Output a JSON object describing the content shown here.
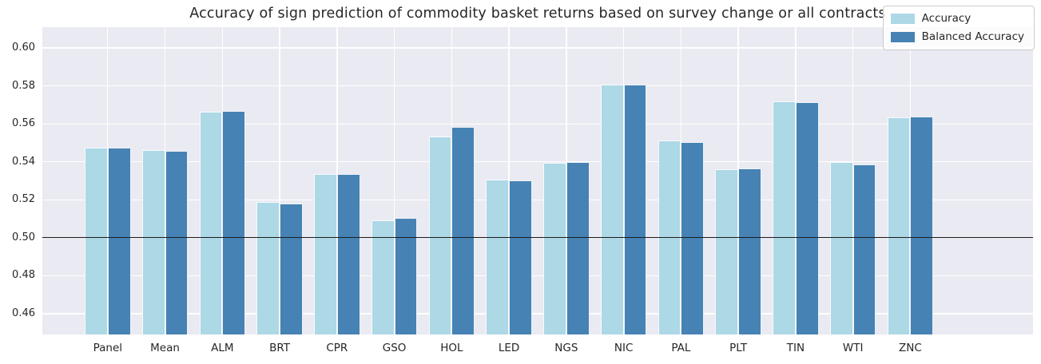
{
  "chart_data": {
    "type": "bar",
    "title": "Accuracy of sign prediction of commodity basket returns based on survey change or all contracts",
    "categories": [
      "Panel",
      "Mean",
      "ALM",
      "BRT",
      "CPR",
      "GSO",
      "HOL",
      "LED",
      "NGS",
      "NIC",
      "PAL",
      "PLT",
      "TIN",
      "WTI",
      "ZNC"
    ],
    "series": [
      {
        "name": "Accuracy",
        "color": "#add8e6",
        "values": [
          0.5475,
          0.546,
          0.5662,
          0.5188,
          0.5336,
          0.5093,
          0.5532,
          0.5308,
          0.5396,
          0.5808,
          0.5513,
          0.5363,
          0.572,
          0.5397,
          0.5635
        ]
      },
      {
        "name": "Balanced Accuracy",
        "color": "#4682b4",
        "values": [
          0.5473,
          0.5457,
          0.5667,
          0.5181,
          0.5335,
          0.5103,
          0.5585,
          0.5304,
          0.5398,
          0.5807,
          0.5504,
          0.5366,
          0.5716,
          0.5388,
          0.5637
        ]
      }
    ],
    "xlabel": "",
    "ylabel": "",
    "ylim": [
      0.449,
      0.611
    ],
    "yticks": [
      0.46,
      0.48,
      0.5,
      0.52,
      0.54,
      0.56,
      0.58,
      0.6
    ],
    "refline": 0.5,
    "grid": true,
    "legend_position": "upper right",
    "plot_bg_color": "#eaeaf2",
    "grid_color": "#ffffff",
    "refline_color": "#1c1c1c",
    "text_color": "#262626"
  }
}
